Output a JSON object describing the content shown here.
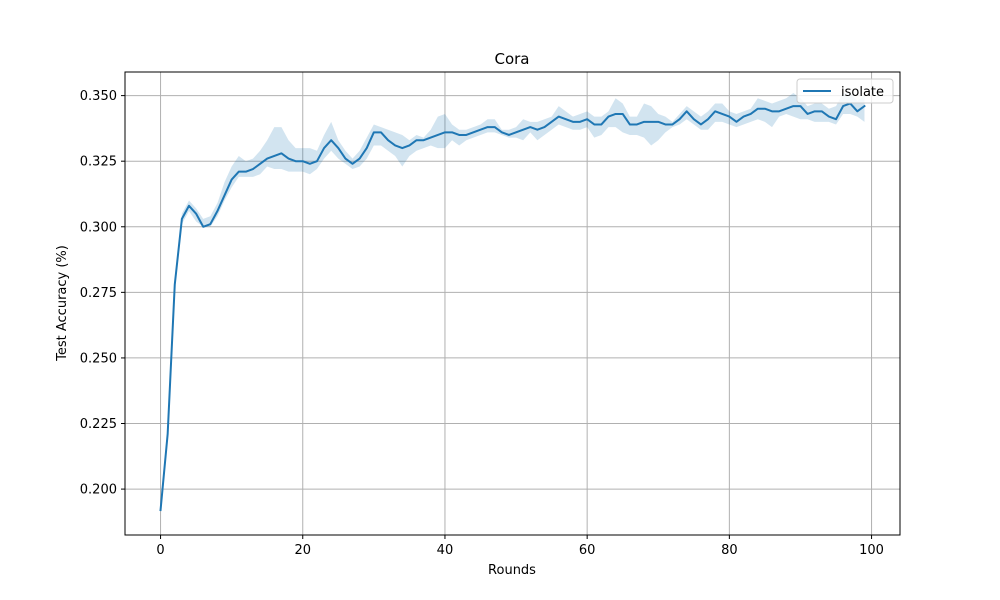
{
  "chart_data": {
    "type": "line",
    "title": "Cora",
    "xlabel": "Rounds",
    "ylabel": "Test Accuracy (%)",
    "xlim": [
      -5,
      104
    ],
    "ylim": [
      0.1825,
      0.359
    ],
    "xticks": [
      0,
      20,
      40,
      60,
      80,
      100
    ],
    "xtick_labels": [
      "0",
      "20",
      "40",
      "60",
      "80",
      "100"
    ],
    "yticks": [
      0.2,
      0.225,
      0.25,
      0.275,
      0.3,
      0.325,
      0.35
    ],
    "ytick_labels": [
      "0.200",
      "0.225",
      "0.250",
      "0.275",
      "0.300",
      "0.325",
      "0.350"
    ],
    "grid": true,
    "legend_position": "top-right",
    "colors": {
      "line": "#1f77b4",
      "band": "#1f77b4",
      "grid": "#b0b0b0"
    },
    "series": [
      {
        "name": "isolate",
        "x": [
          0,
          1,
          2,
          3,
          4,
          5,
          6,
          7,
          8,
          9,
          10,
          11,
          12,
          13,
          14,
          15,
          16,
          17,
          18,
          19,
          20,
          21,
          22,
          23,
          24,
          25,
          26,
          27,
          28,
          29,
          30,
          31,
          32,
          33,
          34,
          35,
          36,
          37,
          38,
          39,
          40,
          41,
          42,
          43,
          44,
          45,
          46,
          47,
          48,
          49,
          50,
          51,
          52,
          53,
          54,
          55,
          56,
          57,
          58,
          59,
          60,
          61,
          62,
          63,
          64,
          65,
          66,
          67,
          68,
          69,
          70,
          71,
          72,
          73,
          74,
          75,
          76,
          77,
          78,
          79,
          80,
          81,
          82,
          83,
          84,
          85,
          86,
          87,
          88,
          89,
          90,
          91,
          92,
          93,
          94,
          95,
          96,
          97,
          98,
          99
        ],
        "y": [
          0.192,
          0.221,
          0.278,
          0.303,
          0.308,
          0.305,
          0.3,
          0.301,
          0.306,
          0.312,
          0.318,
          0.321,
          0.321,
          0.322,
          0.324,
          0.326,
          0.327,
          0.328,
          0.326,
          0.325,
          0.325,
          0.324,
          0.325,
          0.33,
          0.333,
          0.33,
          0.326,
          0.324,
          0.326,
          0.33,
          0.336,
          0.336,
          0.333,
          0.331,
          0.33,
          0.331,
          0.333,
          0.333,
          0.334,
          0.335,
          0.336,
          0.336,
          0.335,
          0.335,
          0.336,
          0.337,
          0.338,
          0.338,
          0.336,
          0.335,
          0.336,
          0.337,
          0.338,
          0.337,
          0.338,
          0.34,
          0.342,
          0.341,
          0.34,
          0.34,
          0.341,
          0.339,
          0.339,
          0.342,
          0.343,
          0.343,
          0.339,
          0.339,
          0.34,
          0.34,
          0.34,
          0.339,
          0.339,
          0.341,
          0.344,
          0.341,
          0.339,
          0.341,
          0.344,
          0.343,
          0.342,
          0.34,
          0.342,
          0.343,
          0.345,
          0.345,
          0.344,
          0.344,
          0.345,
          0.346,
          0.346,
          0.343,
          0.344,
          0.344,
          0.342,
          0.341,
          0.346,
          0.347,
          0.344,
          0.346
        ],
        "lower": [
          0.192,
          0.22,
          0.276,
          0.301,
          0.306,
          0.302,
          0.3,
          0.3,
          0.304,
          0.31,
          0.315,
          0.319,
          0.319,
          0.319,
          0.32,
          0.323,
          0.322,
          0.322,
          0.321,
          0.321,
          0.321,
          0.32,
          0.322,
          0.326,
          0.329,
          0.326,
          0.324,
          0.322,
          0.323,
          0.326,
          0.331,
          0.331,
          0.329,
          0.327,
          0.323,
          0.327,
          0.329,
          0.33,
          0.331,
          0.33,
          0.33,
          0.333,
          0.331,
          0.333,
          0.334,
          0.335,
          0.336,
          0.336,
          0.335,
          0.334,
          0.334,
          0.333,
          0.336,
          0.333,
          0.335,
          0.337,
          0.339,
          0.338,
          0.337,
          0.337,
          0.338,
          0.334,
          0.335,
          0.338,
          0.338,
          0.336,
          0.335,
          0.335,
          0.334,
          0.331,
          0.333,
          0.336,
          0.338,
          0.339,
          0.341,
          0.339,
          0.337,
          0.337,
          0.34,
          0.34,
          0.339,
          0.338,
          0.339,
          0.34,
          0.341,
          0.34,
          0.338,
          0.342,
          0.343,
          0.342,
          0.341,
          0.341,
          0.34,
          0.34,
          0.34,
          0.339,
          0.343,
          0.343,
          0.342,
          0.34
        ],
        "upper": [
          0.192,
          0.222,
          0.28,
          0.305,
          0.31,
          0.307,
          0.303,
          0.304,
          0.309,
          0.317,
          0.323,
          0.327,
          0.325,
          0.326,
          0.329,
          0.333,
          0.338,
          0.338,
          0.333,
          0.33,
          0.33,
          0.33,
          0.329,
          0.335,
          0.34,
          0.333,
          0.329,
          0.326,
          0.329,
          0.334,
          0.339,
          0.338,
          0.337,
          0.336,
          0.335,
          0.333,
          0.335,
          0.334,
          0.337,
          0.342,
          0.343,
          0.339,
          0.337,
          0.337,
          0.338,
          0.339,
          0.341,
          0.341,
          0.337,
          0.337,
          0.338,
          0.341,
          0.34,
          0.34,
          0.341,
          0.342,
          0.346,
          0.344,
          0.342,
          0.343,
          0.344,
          0.342,
          0.342,
          0.344,
          0.349,
          0.347,
          0.342,
          0.342,
          0.347,
          0.346,
          0.343,
          0.342,
          0.34,
          0.343,
          0.346,
          0.344,
          0.342,
          0.344,
          0.347,
          0.347,
          0.344,
          0.343,
          0.344,
          0.345,
          0.349,
          0.348,
          0.347,
          0.348,
          0.349,
          0.351,
          0.349,
          0.346,
          0.347,
          0.347,
          0.345,
          0.346,
          0.351,
          0.351,
          0.348,
          0.35
        ]
      }
    ]
  }
}
